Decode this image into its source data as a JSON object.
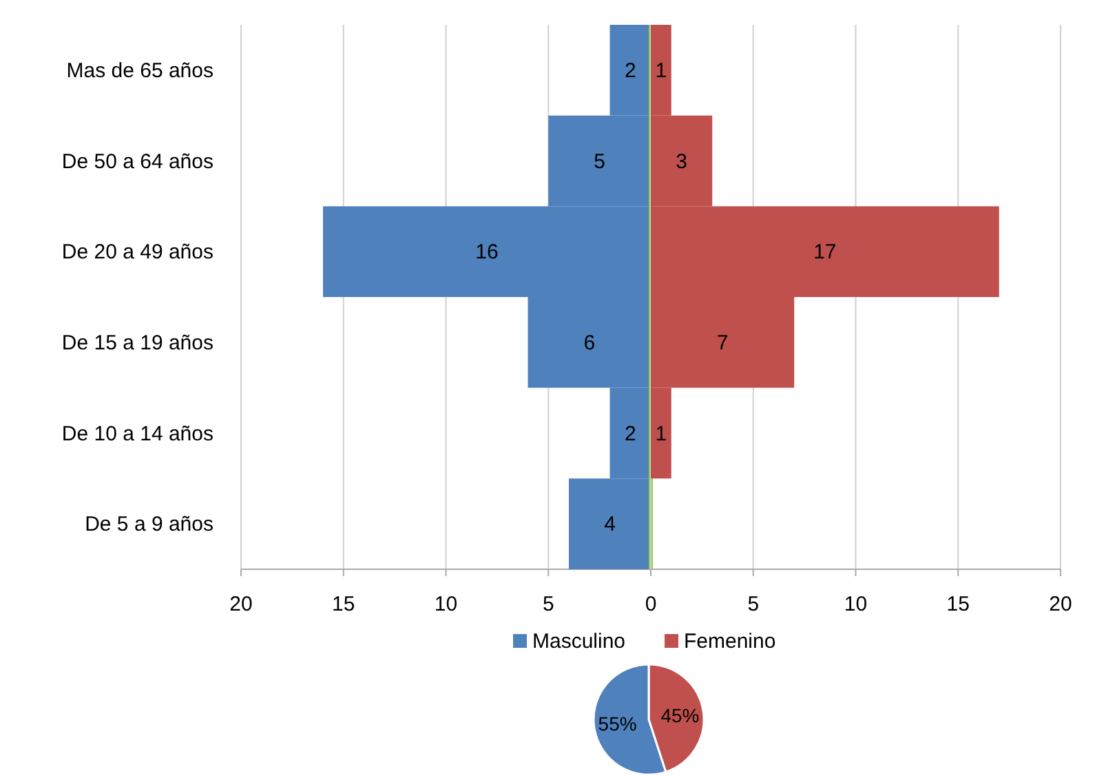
{
  "chart_data": [
    {
      "type": "bar",
      "orientation": "horizontal",
      "categories": [
        "Mas de 65 años",
        "De 50 a 64 años",
        "De 20 a 49 años",
        "De 15 a 19 años",
        "De 10 a 14 años",
        "De 5 a 9 años"
      ],
      "series": [
        {
          "name": "Masculino",
          "color": "#4f81bd",
          "values": [
            2,
            5,
            16,
            6,
            2,
            4
          ]
        }
      ],
      "data_labels": true,
      "xlim": [
        20,
        0
      ],
      "xticks": [
        20,
        15,
        10,
        5,
        0
      ],
      "grid": "x",
      "legend": "bottom",
      "ref_lines": [
        {
          "axis": "x",
          "value": 0,
          "color": "#92d050"
        }
      ]
    },
    {
      "type": "bar",
      "orientation": "horizontal",
      "tick_labels": "x",
      "categories": [
        null,
        null,
        null,
        null,
        null,
        null
      ],
      "series": [
        {
          "name": "Femenino",
          "color": "#c0504d",
          "values": [
            1,
            3,
            17,
            7,
            1,
            null
          ]
        }
      ],
      "data_labels": true,
      "xlim": [
        0,
        20
      ],
      "xticks": [
        {
          "value": 0,
          "label": null
        },
        5,
        10,
        15,
        20
      ],
      "grid": "x",
      "legend": "bottom"
    },
    {
      "type": "pie",
      "categories": [
        null,
        null
      ],
      "values": [
        45,
        55
      ],
      "colors": [
        "#c0504d",
        "#4f81bd"
      ],
      "value_labels": [
        "45%",
        "55%"
      ]
    }
  ]
}
